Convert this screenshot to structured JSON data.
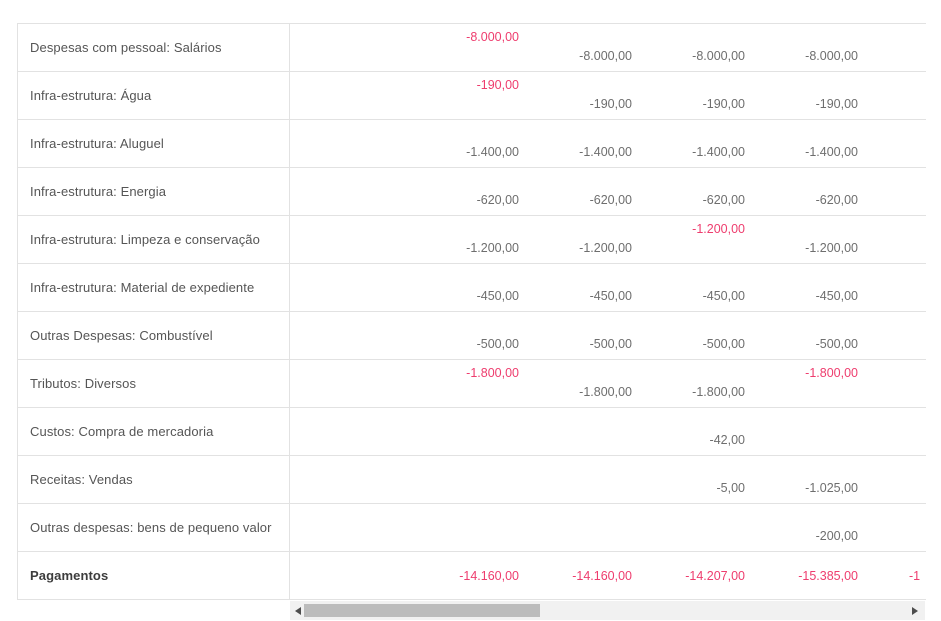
{
  "table": {
    "rows": [
      {
        "label": "Despesas com pessoal: Salários",
        "values": [
          {
            "text": "-8.000,00",
            "highlight": true
          },
          {
            "text": "-8.000,00"
          },
          {
            "text": "-8.000,00"
          },
          {
            "text": "-8.000,00"
          },
          null
        ]
      },
      {
        "label": "Infra-estrutura: Água",
        "values": [
          {
            "text": "-190,00",
            "highlight": true
          },
          {
            "text": "-190,00"
          },
          {
            "text": "-190,00"
          },
          {
            "text": "-190,00"
          },
          null
        ]
      },
      {
        "label": "Infra-estrutura: Aluguel",
        "values": [
          {
            "text": "-1.400,00"
          },
          {
            "text": "-1.400,00"
          },
          {
            "text": "-1.400,00"
          },
          {
            "text": "-1.400,00"
          },
          null
        ]
      },
      {
        "label": "Infra-estrutura: Energia",
        "values": [
          {
            "text": "-620,00"
          },
          {
            "text": "-620,00"
          },
          {
            "text": "-620,00"
          },
          {
            "text": "-620,00"
          },
          null
        ]
      },
      {
        "label": "Infra-estrutura: Limpeza e conservação",
        "values": [
          {
            "text": "-1.200,00"
          },
          {
            "text": "-1.200,00"
          },
          {
            "text": "-1.200,00",
            "highlight": true
          },
          {
            "text": "-1.200,00"
          },
          null
        ]
      },
      {
        "label": "Infra-estrutura: Material de expediente",
        "values": [
          {
            "text": "-450,00"
          },
          {
            "text": "-450,00"
          },
          {
            "text": "-450,00"
          },
          {
            "text": "-450,00"
          },
          null
        ]
      },
      {
        "label": "Outras Despesas: Combustível",
        "values": [
          {
            "text": "-500,00"
          },
          {
            "text": "-500,00"
          },
          {
            "text": "-500,00"
          },
          {
            "text": "-500,00"
          },
          null
        ]
      },
      {
        "label": "Tributos: Diversos",
        "values": [
          {
            "text": "-1.800,00",
            "highlight": true
          },
          {
            "text": "-1.800,00"
          },
          {
            "text": "-1.800,00"
          },
          {
            "text": "-1.800,00",
            "highlight": true
          },
          null
        ]
      },
      {
        "label": "Custos: Compra de mercadoria",
        "values": [
          null,
          null,
          {
            "text": "-42,00"
          },
          null,
          null
        ]
      },
      {
        "label": "Receitas: Vendas",
        "values": [
          null,
          null,
          {
            "text": "-5,00"
          },
          {
            "text": "-1.025,00"
          },
          null
        ]
      },
      {
        "label": "Outras despesas: bens de pequeno valor",
        "values": [
          null,
          null,
          null,
          {
            "text": "-200,00"
          },
          null
        ]
      },
      {
        "label": "Pagamentos",
        "footer": true,
        "values": [
          {
            "text": "-14.160,00",
            "highlight": true
          },
          {
            "text": "-14.160,00",
            "highlight": true
          },
          {
            "text": "-14.207,00",
            "highlight": true
          },
          {
            "text": "-15.385,00",
            "highlight": true
          },
          {
            "text": "-1",
            "highlight": true,
            "clipped": true
          }
        ]
      }
    ]
  },
  "colors": {
    "highlight": "#ee3d6e",
    "value": "#6e6e6e",
    "label": "#555555",
    "border": "#e2e2e2",
    "scrollbar_track": "#f1f1f1",
    "scrollbar_thumb": "#bcbcbc"
  },
  "scrollbar": {
    "orientation": "horizontal"
  }
}
